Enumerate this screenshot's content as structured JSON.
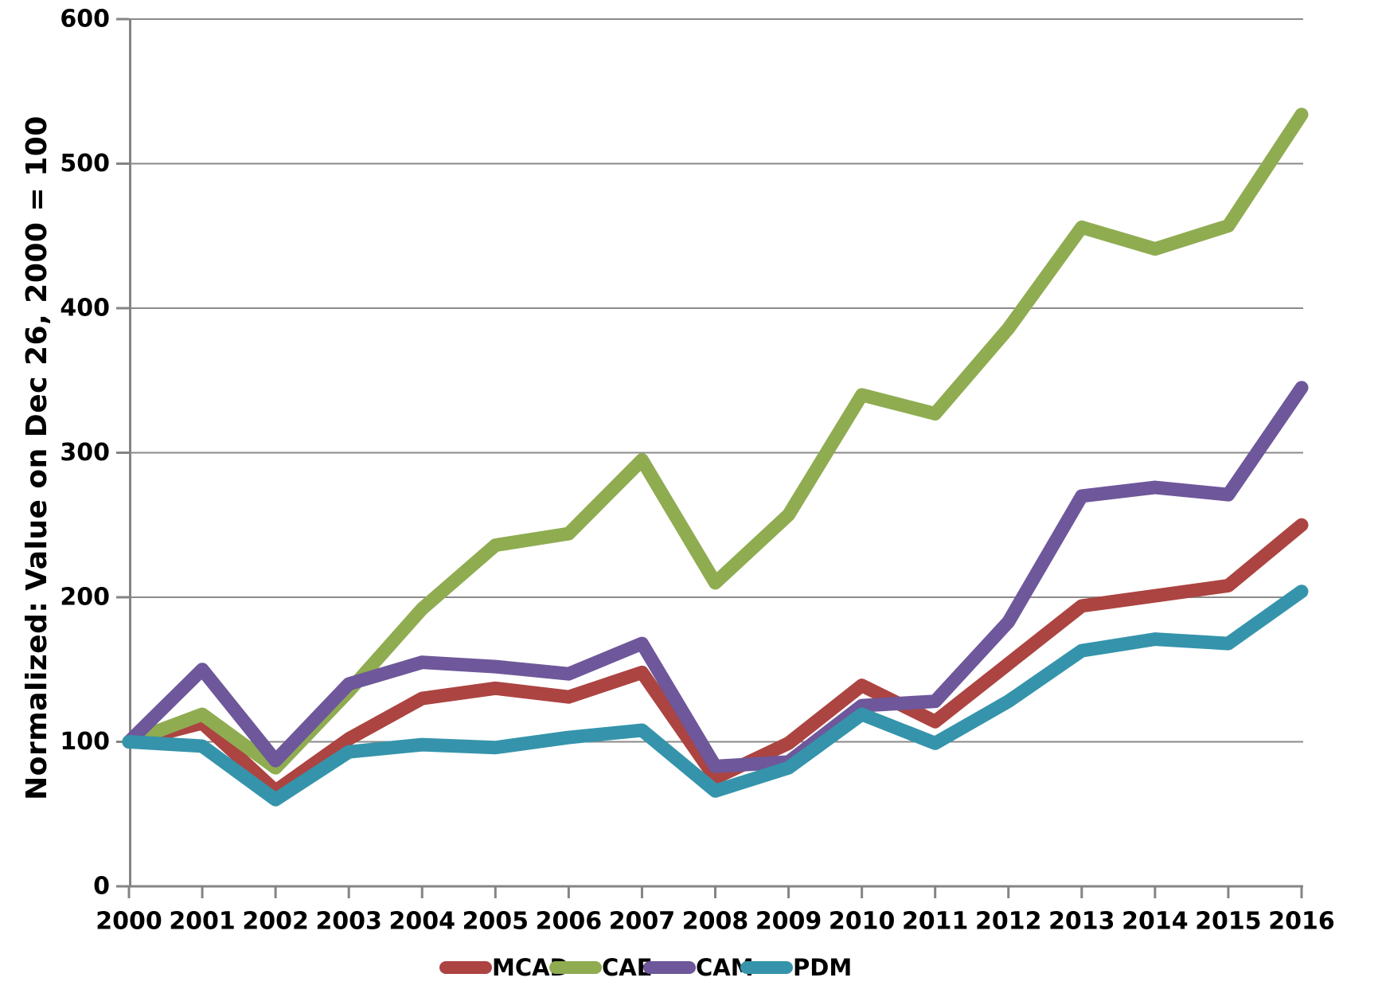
{
  "chart_data": {
    "type": "line",
    "title": "",
    "xlabel": "",
    "ylabel": "Normalized: Value on Dec 26, 2000 = 100",
    "x": [
      2000,
      2001,
      2002,
      2003,
      2004,
      2005,
      2006,
      2007,
      2008,
      2009,
      2010,
      2011,
      2012,
      2013,
      2014,
      2015,
      2016
    ],
    "series": [
      {
        "name": "MCAD",
        "color": "#AC4441",
        "values": [
          100,
          113,
          66,
          102,
          130,
          137,
          131,
          148,
          75,
          99,
          139,
          114,
          154,
          194,
          201,
          208,
          250
        ]
      },
      {
        "name": "CAE",
        "color": "#8FAC51",
        "values": [
          100,
          119,
          82,
          135,
          192,
          236,
          244,
          295,
          210,
          257,
          340,
          327,
          386,
          456,
          441,
          457,
          534
        ]
      },
      {
        "name": "CAM",
        "color": "#6E579A",
        "values": [
          100,
          150,
          87,
          140,
          155,
          152,
          147,
          168,
          83,
          86,
          125,
          128,
          183,
          270,
          276,
          271,
          345
        ]
      },
      {
        "name": "PDM",
        "color": "#3594AB",
        "values": [
          100,
          97,
          60,
          93,
          98,
          96,
          103,
          108,
          66,
          82,
          119,
          99,
          128,
          163,
          171,
          168,
          204
        ]
      }
    ],
    "ylim": [
      0,
      600
    ],
    "yticks": [
      0,
      100,
      200,
      300,
      400,
      500,
      600
    ],
    "grid": "horizontal",
    "legend_position": "bottom",
    "axis_color": "#848484",
    "grid_color": "#8a8a8a",
    "text_color": "#000000"
  }
}
